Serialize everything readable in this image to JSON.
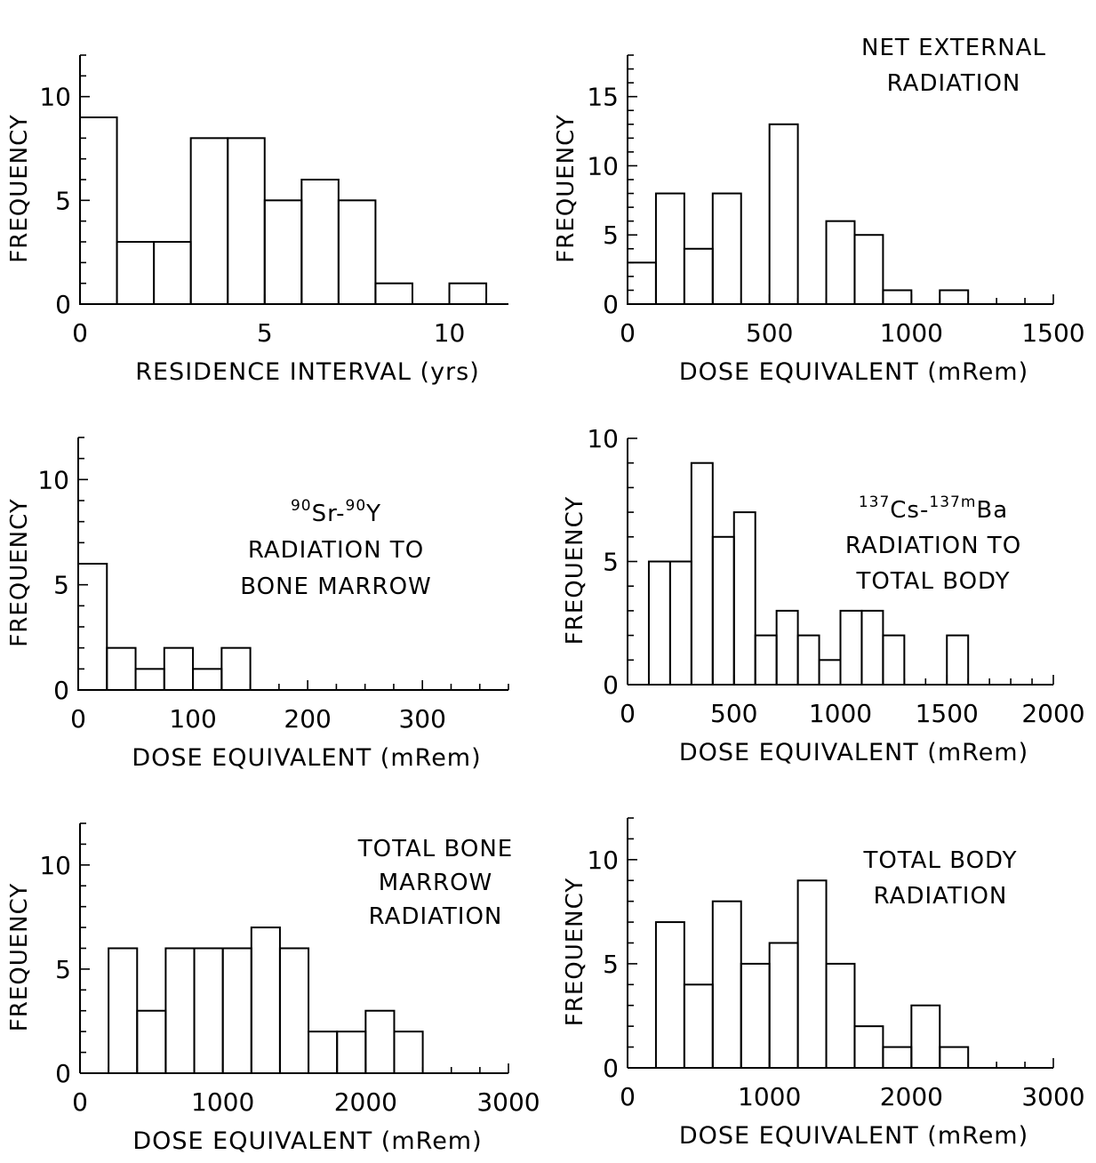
{
  "chart_data": [
    {
      "type": "bar",
      "title": "",
      "xlabel": "RESIDENCE INTERVAL (yrs)",
      "ylabel": "FREQUENCY",
      "xlim": [
        0,
        11.6
      ],
      "ylim": [
        0,
        12
      ],
      "bin_width": 1,
      "x_ticks": [
        0,
        5,
        10
      ],
      "y_ticks": [
        0,
        5,
        10
      ],
      "x_tick_labels": [
        "0",
        "5",
        "10"
      ],
      "y_tick_labels": [
        "0",
        "5",
        "10"
      ],
      "x_minor_step": 1,
      "y_minor_step": 1,
      "bin_starts": [
        0,
        1,
        2,
        3,
        4,
        5,
        6,
        7,
        8,
        9,
        10
      ],
      "values": [
        9,
        3,
        3,
        8,
        8,
        5,
        6,
        5,
        1,
        0,
        1
      ],
      "annotation": []
    },
    {
      "type": "bar",
      "title": "",
      "xlabel": "DOSE EQUIVALENT (mRem)",
      "ylabel": "FREQUENCY",
      "xlim": [
        0,
        1500
      ],
      "ylim": [
        0,
        18
      ],
      "bin_width": 100,
      "x_ticks": [
        0,
        500,
        1000,
        1500
      ],
      "y_ticks": [
        0,
        5,
        10,
        15
      ],
      "x_tick_labels": [
        "0",
        "500",
        "1000",
        "1500"
      ],
      "y_tick_labels": [
        "0",
        "5",
        "10",
        "15"
      ],
      "x_minor_step": 100,
      "y_minor_step": 1,
      "bin_starts": [
        0,
        100,
        200,
        300,
        400,
        500,
        600,
        700,
        800,
        900,
        1000,
        1100
      ],
      "values": [
        3,
        8,
        4,
        8,
        0,
        13,
        0,
        6,
        5,
        1,
        0,
        1
      ],
      "annotation": [
        "NET EXTERNAL",
        "RADIATION"
      ]
    },
    {
      "type": "bar",
      "title": "",
      "xlabel": "DOSE EQUIVALENT (mRem)",
      "ylabel": "FREQUENCY",
      "xlim": [
        0,
        375
      ],
      "ylim": [
        0,
        12
      ],
      "bin_width": 25,
      "x_ticks": [
        0,
        100,
        200,
        300
      ],
      "y_ticks": [
        0,
        5,
        10
      ],
      "x_tick_labels": [
        "0",
        "100",
        "200",
        "300"
      ],
      "y_tick_labels": [
        "0",
        "5",
        "10"
      ],
      "x_minor_step": 25,
      "y_minor_step": 1,
      "bin_starts": [
        0,
        25,
        50,
        75,
        100,
        125
      ],
      "values": [
        6,
        2,
        1,
        2,
        1,
        2
      ],
      "annotation": [
        {
          "parts": [
            {
              "t": "90",
              "sup": true
            },
            {
              "t": "Sr-"
            },
            {
              "t": "90",
              "sup": true
            },
            {
              "t": "Y"
            }
          ]
        },
        "RADIATION TO",
        "BONE MARROW"
      ]
    },
    {
      "type": "bar",
      "title": "",
      "xlabel": "DOSE EQUIVALENT (mRem)",
      "ylabel": "FREQUENCY",
      "xlim": [
        0,
        2000
      ],
      "ylim": [
        0,
        10
      ],
      "bin_width": 100,
      "x_ticks": [
        0,
        500,
        1000,
        1500,
        2000
      ],
      "y_ticks": [
        0,
        5,
        10
      ],
      "x_tick_labels": [
        "0",
        "500",
        "1000",
        "1500",
        "2000"
      ],
      "y_tick_labels": [
        "0",
        "5",
        "10"
      ],
      "x_minor_step": 100,
      "y_minor_step": 1,
      "bin_starts": [
        100,
        200,
        300,
        400,
        500,
        600,
        700,
        800,
        900,
        1000,
        1100,
        1200,
        1300,
        1400,
        1500
      ],
      "values": [
        5,
        5,
        9,
        6,
        7,
        2,
        3,
        2,
        1,
        3,
        3,
        2,
        0,
        0,
        2
      ],
      "annotation": [
        {
          "parts": [
            {
              "t": "137",
              "sup": true
            },
            {
              "t": "Cs-"
            },
            {
              "t": "137m",
              "sup": true
            },
            {
              "t": "Ba"
            }
          ]
        },
        "RADIATION TO",
        "TOTAL BODY"
      ]
    },
    {
      "type": "bar",
      "title": "",
      "xlabel": "DOSE EQUIVALENT (mRem)",
      "ylabel": "FREQUENCY",
      "xlim": [
        0,
        3000
      ],
      "ylim": [
        0,
        12
      ],
      "bin_width": 200,
      "x_ticks": [
        0,
        1000,
        2000,
        3000
      ],
      "y_ticks": [
        0,
        5,
        10
      ],
      "x_tick_labels": [
        "0",
        "1000",
        "2000",
        "3000"
      ],
      "y_tick_labels": [
        "0",
        "5",
        "10"
      ],
      "x_minor_step": 200,
      "y_minor_step": 1,
      "bin_starts": [
        200,
        400,
        600,
        800,
        1000,
        1200,
        1400,
        1600,
        1800,
        2000,
        2200
      ],
      "values": [
        6,
        3,
        6,
        6,
        6,
        7,
        6,
        2,
        2,
        3,
        2
      ],
      "annotation": [
        "TOTAL BONE",
        "MARROW",
        "RADIATION"
      ]
    },
    {
      "type": "bar",
      "title": "",
      "xlabel": "DOSE EQUIVALENT (mRem)",
      "ylabel": "FREQUENCY",
      "xlim": [
        0,
        3000
      ],
      "ylim": [
        0,
        12
      ],
      "bin_width": 200,
      "x_ticks": [
        0,
        1000,
        2000,
        3000
      ],
      "y_ticks": [
        0,
        5,
        10
      ],
      "x_tick_labels": [
        "0",
        "1000",
        "2000",
        "3000"
      ],
      "y_tick_labels": [
        "0",
        "5",
        "10"
      ],
      "x_minor_step": 200,
      "y_minor_step": 1,
      "bin_starts": [
        200,
        400,
        600,
        800,
        1000,
        1200,
        1400,
        1600,
        1800,
        2000,
        2200
      ],
      "values": [
        7,
        4,
        8,
        5,
        6,
        9,
        5,
        2,
        1,
        3,
        1
      ],
      "annotation": [
        "TOTAL BODY",
        "RADIATION"
      ]
    }
  ]
}
